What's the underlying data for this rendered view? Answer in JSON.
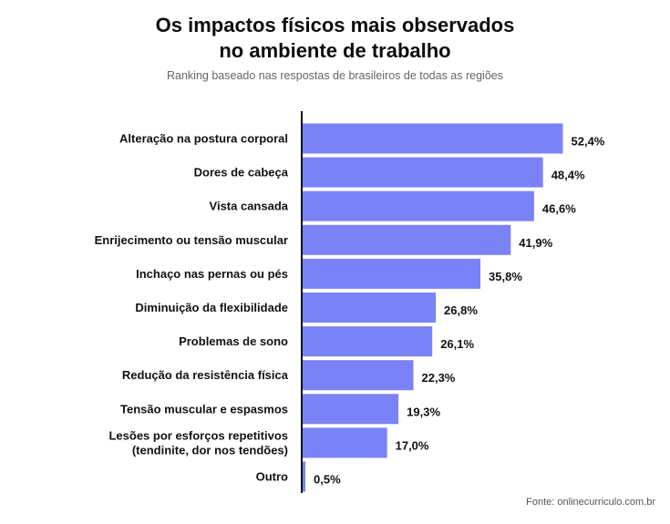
{
  "chart_data": {
    "type": "bar",
    "orientation": "horizontal",
    "title": [
      "Os impactos físicos mais observados",
      "no ambiente de trabalho"
    ],
    "subtitle": "Ranking baseado nas respostas de brasileiros de todas as regiões",
    "categories": [
      [
        "Alteração na postura corporal"
      ],
      [
        "Dores de cabeça"
      ],
      [
        "Vista cansada"
      ],
      [
        "Enrijecimento ou tensão muscular"
      ],
      [
        "Inchaço nas pernas ou pés"
      ],
      [
        "Diminuição da flexibilidade"
      ],
      [
        "Problemas de sono"
      ],
      [
        "Redução da resistência física"
      ],
      [
        "Tensão muscular e espasmos"
      ],
      [
        "Lesões por esforços repetitivos",
        "(tendinite, dor nos tendões)"
      ],
      [
        "Outro"
      ]
    ],
    "values": [
      52.4,
      48.4,
      46.6,
      41.9,
      35.8,
      26.8,
      26.1,
      22.3,
      19.3,
      17.0,
      0.5
    ],
    "value_labels": [
      "52,4%",
      "48,4%",
      "46,6%",
      "41,9%",
      "35,8%",
      "26,8%",
      "26,1%",
      "22,3%",
      "19,3%",
      "17,0%",
      "0,5%"
    ],
    "bar_color": "#7b82f5",
    "axis_color": "#111111",
    "grid": false,
    "legend": "none"
  },
  "source": "Fonte: onlinecurriculo.com.br"
}
